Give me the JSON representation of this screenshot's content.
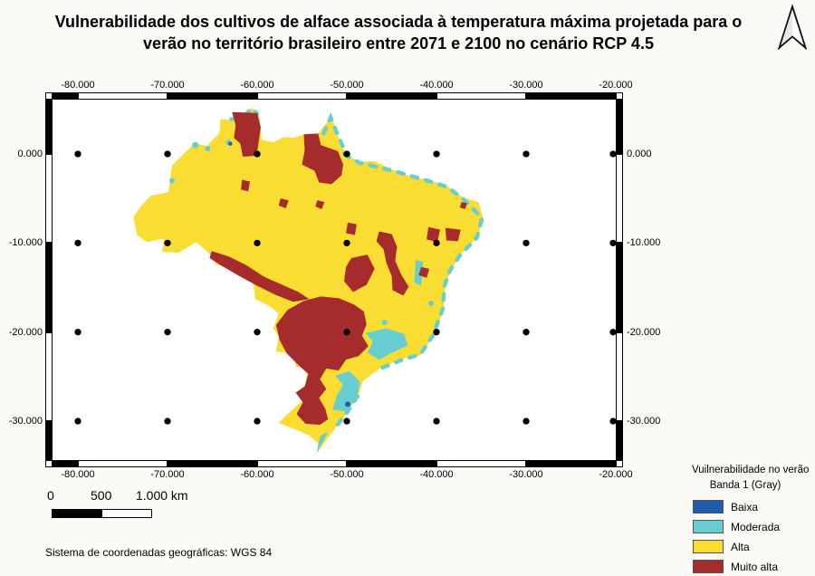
{
  "title": {
    "line1": "Vulnerabilidade dos cultivos de alface associada à temperatura máxima projetada para o",
    "line2": "verão no território brasileiro entre 2071 e 2100 no cenário RCP 4.5"
  },
  "grid": {
    "lon_labels": [
      "-80.000",
      "-70.000",
      "-60.000",
      "-50.000",
      "-40.000",
      "-30.000",
      "-20.000"
    ],
    "lat_labels": [
      "0.000",
      "-10.000",
      "-20.000",
      "-30.000"
    ]
  },
  "scalebar": {
    "label_0": "0",
    "label_mid": "500",
    "label_end": "1.000 km"
  },
  "legend": {
    "title": "Vuilnerabilidade no verão",
    "subtitle": "Banda 1 (Gray)",
    "items": [
      {
        "label": "Baixa",
        "color": "#1F5CAB"
      },
      {
        "label": "Moderada",
        "color": "#68CDD1"
      },
      {
        "label": "Alta",
        "color": "#F9DD32"
      },
      {
        "label": "Muito alta",
        "color": "#A62B2D"
      }
    ]
  },
  "footer": {
    "crs_text": "Sistema de coordenadas geográficas: WGS 84"
  },
  "colors": {
    "page_background": "#fbfaf7",
    "map_background": "#ffffff",
    "neatline": "#000000",
    "graticule_dot": "#000000"
  }
}
